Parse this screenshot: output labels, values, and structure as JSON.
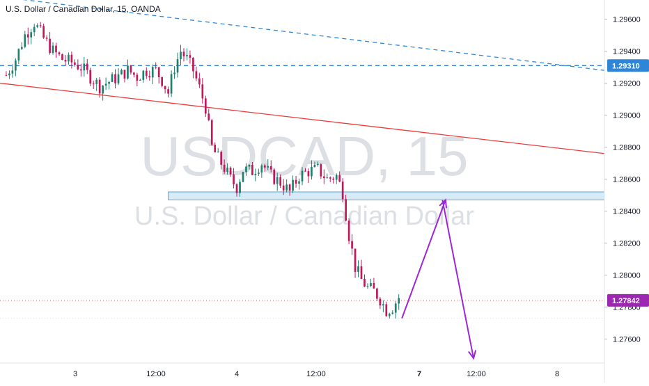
{
  "header": {
    "title": "U.S. Dollar / Canadian Dollar, 15, OANDA"
  },
  "watermark": {
    "symbol": "USDCAD, 15",
    "name": "U.S. Dollar / Canadian Dollar"
  },
  "colors": {
    "up": "#26a69a",
    "down": "#ef5350",
    "candle_up": "#1f7f70",
    "candle_down": "#c2185b",
    "trend_blue": "#2f86d6",
    "trend_red": "#ef3b3b",
    "zone_fill": "#d6eaf8",
    "zone_stroke": "#5aa6e0",
    "arrow_purple": "#9c27d6",
    "price_label": "#9c27b0",
    "level_label": "#2f86d6",
    "grid": "#d9dce2",
    "axis_text": "#131722"
  },
  "chart_data": {
    "type": "candlestick",
    "title": "U.S. Dollar / Canadian Dollar, 15, OANDA",
    "symbol": "USDCAD",
    "interval": "15",
    "xlabel": "",
    "ylabel": "",
    "ylim": [
      1.2745,
      1.2972
    ],
    "y_ticks": [
      "1.29600",
      "1.29400",
      "1.29200",
      "1.29000",
      "1.28800",
      "1.28600",
      "1.28400",
      "1.28200",
      "1.28000",
      "1.27800",
      "1.27600"
    ],
    "y_tick_values": [
      1.296,
      1.294,
      1.292,
      1.29,
      1.288,
      1.286,
      1.284,
      1.282,
      1.28,
      1.278,
      1.276
    ],
    "x_ticks": [
      "3",
      "12:00",
      "4",
      "12:00",
      "7",
      "12:00",
      "8"
    ],
    "x_tick_emphasis": [
      false,
      false,
      false,
      false,
      true,
      false,
      false
    ],
    "grid": true,
    "price_path": [
      [
        0,
        1.2925
      ],
      [
        3,
        1.2935
      ],
      [
        6,
        1.295
      ],
      [
        9,
        1.2958
      ],
      [
        12,
        1.2948
      ],
      [
        15,
        1.294
      ],
      [
        18,
        1.2935
      ],
      [
        21,
        1.2933
      ],
      [
        24,
        1.293
      ],
      [
        27,
        1.2924
      ],
      [
        30,
        1.2918
      ],
      [
        33,
        1.2921
      ],
      [
        36,
        1.2924
      ],
      [
        39,
        1.2928
      ],
      [
        42,
        1.2924
      ],
      [
        45,
        1.2928
      ],
      [
        48,
        1.2928
      ],
      [
        50,
        1.2922
      ],
      [
        52,
        1.2914
      ],
      [
        54,
        1.293
      ],
      [
        56,
        1.294
      ],
      [
        58,
        1.2935
      ],
      [
        60,
        1.2928
      ],
      [
        62,
        1.2917
      ],
      [
        64,
        1.2905
      ],
      [
        66,
        1.288
      ],
      [
        68,
        1.2873
      ],
      [
        70,
        1.2867
      ],
      [
        72,
        1.286
      ],
      [
        74,
        1.2855
      ],
      [
        76,
        1.2866
      ],
      [
        79,
        1.2865
      ],
      [
        82,
        1.287
      ],
      [
        85,
        1.2862
      ],
      [
        88,
        1.2858
      ],
      [
        91,
        1.2852
      ],
      [
        94,
        1.2862
      ],
      [
        97,
        1.2865
      ],
      [
        100,
        1.2866
      ],
      [
        103,
        1.286
      ],
      [
        106,
        1.2862
      ],
      [
        108,
        1.2852
      ],
      [
        110,
        1.2825
      ],
      [
        112,
        1.2805
      ],
      [
        114,
        1.2797
      ],
      [
        116,
        1.2792
      ],
      [
        118,
        1.279
      ],
      [
        120,
        1.2785
      ],
      [
        122,
        1.2778
      ],
      [
        124,
        1.278
      ],
      [
        126,
        1.2786
      ]
    ],
    "last_price": "1.27842",
    "level_label": "1.29310",
    "horizontal_levels": [
      {
        "price": 1.2931,
        "style": "dashed",
        "color": "trend_blue"
      },
      {
        "price": 1.27842,
        "style": "dotted",
        "color": "down"
      },
      {
        "price": 1.2773,
        "style": "dotted",
        "color": "grid"
      }
    ],
    "trendlines": [
      {
        "from": [
          -2,
          1.2974
        ],
        "to": [
          192,
          1.2928
        ],
        "style": "dashed",
        "color": "trend_blue"
      },
      {
        "from": [
          -2,
          1.292
        ],
        "to": [
          192,
          1.2876
        ],
        "style": "solid",
        "color": "trend_red"
      }
    ],
    "support_zone": {
      "from_index": 52,
      "to_index": 192,
      "low": 1.2847,
      "high": 1.2852
    },
    "projection_arrows": [
      {
        "from": [
          127,
          1.2773
        ],
        "to": [
          141,
          1.2847
        ]
      },
      {
        "from": [
          140,
          1.2847
        ],
        "to": [
          150,
          1.2748
        ]
      }
    ],
    "x_range": [
      -2,
      192
    ]
  }
}
